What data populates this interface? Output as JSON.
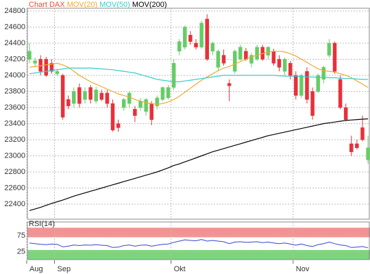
{
  "chart_data": [
    {
      "type": "candlestick",
      "categories": [
        "Aug",
        null,
        null,
        null,
        null,
        "Sep",
        null,
        null,
        null,
        null,
        null,
        null,
        null,
        null,
        null,
        null,
        null,
        null,
        null,
        null,
        null,
        null,
        null,
        null,
        null,
        null,
        "Okt",
        null,
        null,
        null,
        null,
        null,
        null,
        null,
        null,
        null,
        null,
        null,
        null,
        null,
        null,
        null,
        null,
        null,
        null,
        null,
        null,
        null,
        "Nov",
        null,
        null,
        null,
        null,
        null,
        null,
        null,
        null,
        null,
        null,
        null,
        null,
        null
      ],
      "series": [
        {
          "name": "Chart DAX",
          "color": "#e8503a",
          "up_color": "#66cc66",
          "down_color": "#e8303a",
          "open": [
            24200,
            24150,
            24200,
            24200,
            24150,
            24020,
            24000,
            23700,
            23650,
            23850,
            23700,
            23850,
            23680,
            23780,
            23780,
            23650,
            23400,
            23600,
            23650,
            23580,
            23600,
            23550,
            23650,
            23620,
            23700,
            23720,
            23850,
            24300,
            24350,
            24500,
            24400,
            24350,
            24700,
            24300,
            24100,
            24250,
            23900,
            24050,
            24200,
            24300,
            24150,
            24200,
            24350,
            24250,
            24300,
            24200,
            24050,
            24150,
            24000,
            23750,
            24050,
            23800,
            23800,
            23950,
            24250,
            24400,
            23950,
            23600,
            23150,
            23150,
            23350,
            22950
          ],
          "high": [
            24400,
            24220,
            24250,
            24230,
            24200,
            24080,
            24020,
            23750,
            23850,
            23900,
            23850,
            23880,
            23860,
            23820,
            23820,
            23700,
            23450,
            23720,
            23800,
            23620,
            23720,
            23720,
            23680,
            23750,
            23860,
            23880,
            24200,
            24450,
            24620,
            24550,
            24450,
            24680,
            24760,
            24420,
            24320,
            24320,
            23950,
            24320,
            24380,
            24340,
            24280,
            24380,
            24380,
            24360,
            24330,
            24250,
            24220,
            24180,
            24050,
            24020,
            24100,
            23850,
            24020,
            24120,
            24450,
            24420,
            24000,
            23650,
            23250,
            23200,
            23500,
            23250
          ],
          "low": [
            24150,
            24100,
            24000,
            23980,
            24020,
            23990,
            23450,
            23580,
            23600,
            23600,
            23650,
            23650,
            23650,
            23680,
            23600,
            23300,
            23300,
            23560,
            23600,
            23420,
            23560,
            23500,
            23380,
            23580,
            23680,
            23700,
            23820,
            24250,
            24320,
            24380,
            24320,
            24330,
            24180,
            24250,
            24050,
            24120,
            23680,
            24020,
            24180,
            24180,
            24100,
            24180,
            24180,
            24200,
            24120,
            24050,
            24000,
            23950,
            23700,
            23720,
            23650,
            23450,
            23780,
            23900,
            24220,
            24020,
            23580,
            23430,
            23000,
            23080,
            23180,
            22900
          ],
          "close": [
            24300,
            24180,
            24050,
            24000,
            24050,
            24050,
            23480,
            23620,
            23800,
            23650,
            23800,
            23700,
            23820,
            23700,
            23650,
            23320,
            23350,
            23700,
            23780,
            23500,
            23680,
            23700,
            23450,
            23720,
            23850,
            23850,
            24150,
            24420,
            24600,
            24420,
            24350,
            24650,
            24200,
            24400,
            24300,
            24150,
            23870,
            24300,
            24350,
            24200,
            24250,
            24350,
            24200,
            24350,
            24150,
            24100,
            24200,
            24000,
            23750,
            24000,
            23700,
            23500,
            24000,
            24100,
            24400,
            24050,
            23600,
            23450,
            23050,
            23100,
            23200,
            23100
          ]
        }
      ],
      "lines": [
        {
          "name": "MOV(20)",
          "color": "#f0a830",
          "values": [
            24100,
            24110,
            24120,
            24130,
            24140,
            24150,
            24130,
            24100,
            24050,
            24000,
            23960,
            23920,
            23890,
            23860,
            23830,
            23800,
            23770,
            23750,
            23730,
            23700,
            23680,
            23660,
            23650,
            23640,
            23650,
            23670,
            23700,
            23740,
            23790,
            23840,
            23890,
            23940,
            23980,
            24020,
            24060,
            24090,
            24110,
            24140,
            24170,
            24200,
            24230,
            24250,
            24270,
            24290,
            24300,
            24300,
            24290,
            24270,
            24240,
            24200,
            24160,
            24120,
            24080,
            24060,
            24050,
            24040,
            24020,
            24000,
            23970,
            23930,
            23890,
            23850
          ]
        },
        {
          "name": "MOV(50)",
          "color": "#33cccc",
          "values": [
            24020,
            24030,
            24040,
            24050,
            24060,
            24070,
            24080,
            24090,
            24090,
            24090,
            24090,
            24090,
            24085,
            24080,
            24075,
            24070,
            24060,
            24050,
            24040,
            24030,
            24010,
            23990,
            23970,
            23950,
            23940,
            23930,
            23920,
            23920,
            23930,
            23940,
            23950,
            23960,
            23970,
            23980,
            23990,
            24000,
            24000,
            24000,
            24000,
            24000,
            24000,
            24000,
            24000,
            24000,
            24000,
            23995,
            23990,
            23990,
            23990,
            23985,
            23980,
            23980,
            23975,
            23975,
            23970,
            23970,
            23965,
            23960,
            23960,
            23955,
            23950,
            23950
          ]
        },
        {
          "name": "MOV(200)",
          "color": "#000000",
          "values": [
            22320,
            22340,
            22360,
            22385,
            22410,
            22430,
            22450,
            22475,
            22500,
            22520,
            22540,
            22560,
            22580,
            22600,
            22620,
            22640,
            22660,
            22680,
            22700,
            22720,
            22740,
            22760,
            22780,
            22800,
            22825,
            22850,
            22880,
            22900,
            22925,
            22950,
            22975,
            23000,
            23025,
            23050,
            23070,
            23090,
            23110,
            23130,
            23150,
            23170,
            23190,
            23210,
            23230,
            23250,
            23265,
            23280,
            23295,
            23310,
            23325,
            23340,
            23355,
            23370,
            23385,
            23400,
            23410,
            23420,
            23430,
            23440,
            23445,
            23450,
            23455,
            23460
          ]
        }
      ],
      "ylim": [
        22213,
        24834
      ],
      "yticks": [
        22400,
        22600,
        22800,
        23000,
        23200,
        23400,
        23600,
        23800,
        24000,
        24200,
        24400,
        24600,
        24800
      ],
      "grid": true
    },
    {
      "type": "line",
      "series": [
        {
          "name": "RSI(14)",
          "color": "#3344cc",
          "values": [
            52,
            50,
            48,
            47,
            49,
            48,
            40,
            42,
            46,
            44,
            46,
            45,
            47,
            45,
            44,
            38,
            39,
            44,
            46,
            42,
            45,
            46,
            42,
            45,
            48,
            49,
            54,
            58,
            62,
            60,
            59,
            63,
            58,
            60,
            58,
            56,
            50,
            55,
            56,
            54,
            55,
            56,
            53,
            55,
            52,
            50,
            52,
            49,
            45,
            49,
            44,
            41,
            47,
            50,
            55,
            50,
            46,
            44,
            38,
            39,
            41,
            37
          ]
        }
      ],
      "bands": [
        {
          "from": 70,
          "to": 100,
          "color": "#f08080"
        },
        {
          "from": 0,
          "to": 30,
          "color": "#66cc66"
        }
      ],
      "ylim": [
        0,
        118
      ],
      "yticks": [
        25,
        75
      ],
      "grid": true
    }
  ]
}
